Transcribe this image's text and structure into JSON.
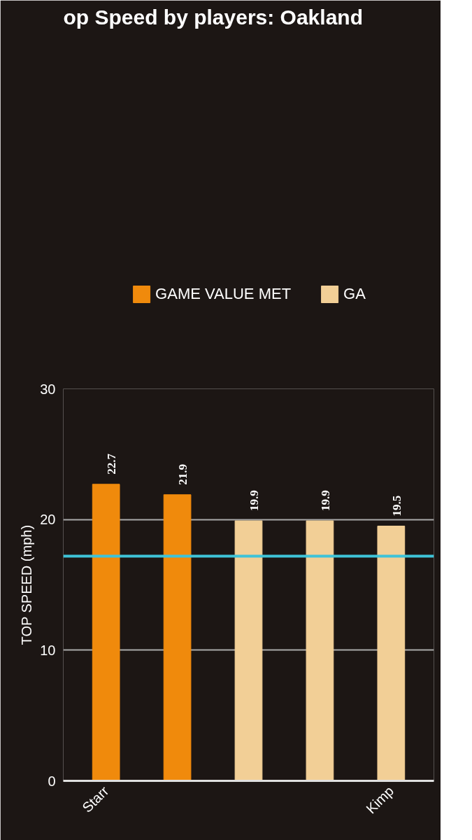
{
  "chart_data": {
    "type": "bar",
    "title": "op Speed by players: Oakland",
    "ylabel": "TOP SPEED (mph)",
    "categories": [
      "Starr",
      null,
      null,
      null,
      "Kimp"
    ],
    "series": [
      {
        "name": "GAME VALUE MET",
        "color": "#f08a0c",
        "values": [
          22.7,
          21.9,
          null,
          null,
          null
        ]
      },
      {
        "name": "GA",
        "color": "#f2cf96",
        "values": [
          null,
          null,
          19.9,
          19.9,
          19.5
        ]
      }
    ],
    "ylim": [
      0,
      30
    ],
    "yticks": [
      0,
      10,
      20,
      30
    ],
    "grid": "y",
    "legend": "top",
    "data_labels": true,
    "ref_lines": [
      {
        "axis": "y",
        "value": 17.2,
        "color": "#3ec3d8"
      }
    ]
  }
}
